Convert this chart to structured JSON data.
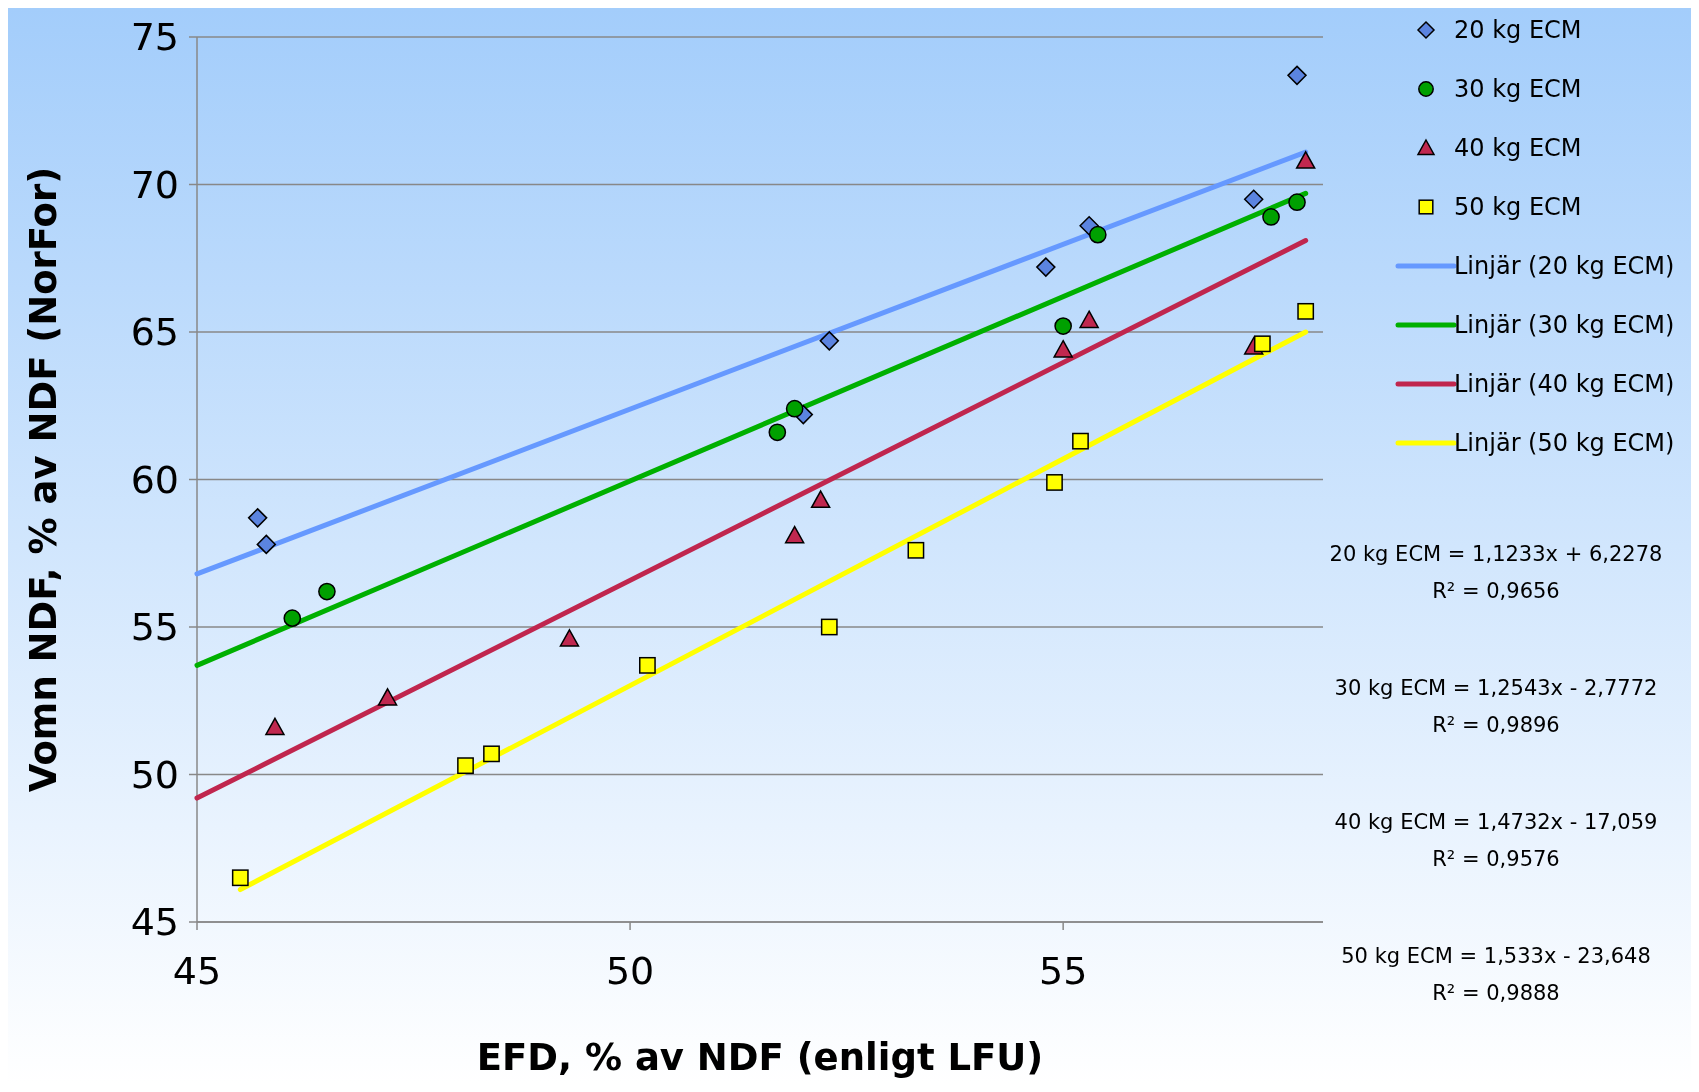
{
  "chart_data": {
    "type": "scatter",
    "xlabel": "EFD, % av NDF (enligt LFU)",
    "ylabel": "Vomn NDF, % av NDF (NorFor)",
    "xlim": [
      45,
      58
    ],
    "xticks": [
      45,
      50,
      55
    ],
    "ylim": [
      45,
      75
    ],
    "yticks": [
      45,
      50,
      55,
      60,
      65,
      70,
      75
    ],
    "grid": "y",
    "legend": "right",
    "series": [
      {
        "name": "20 kg ECM",
        "color": "#5b84e0",
        "marker": "diamond",
        "x": [
          45.7,
          45.8,
          52.0,
          52.3,
          54.8,
          55.3,
          57.2,
          57.7
        ],
        "values": [
          58.7,
          57.8,
          62.2,
          64.7,
          67.2,
          68.6,
          69.5,
          73.7
        ]
      },
      {
        "name": "30 kg ECM",
        "color": "#00a000",
        "marker": "circle",
        "x": [
          46.1,
          46.5,
          51.7,
          51.9,
          55.0,
          55.4,
          57.4,
          57.7
        ],
        "values": [
          55.3,
          56.2,
          61.6,
          62.4,
          65.2,
          68.3,
          68.9,
          69.4
        ]
      },
      {
        "name": "40 kg ECM",
        "color": "#c0284f",
        "marker": "triangle",
        "x": [
          45.9,
          47.2,
          49.3,
          51.9,
          52.2,
          55.0,
          55.3,
          57.2,
          57.8
        ],
        "values": [
          51.6,
          52.6,
          54.6,
          58.1,
          59.3,
          64.4,
          65.4,
          64.5,
          70.8
        ]
      },
      {
        "name": "50 kg ECM",
        "color": "#ffff00",
        "marker": "square",
        "x": [
          45.5,
          48.1,
          48.4,
          50.2,
          52.3,
          53.3,
          54.9,
          55.2,
          57.3,
          57.8
        ],
        "values": [
          46.5,
          50.3,
          50.7,
          53.7,
          55.0,
          57.6,
          59.9,
          61.3,
          64.6,
          65.7
        ]
      },
      {
        "name": "Linjär (20 kg ECM)",
        "type": "line",
        "color": "#6699ff",
        "marker": "none",
        "x": [
          45,
          57.8
        ],
        "values": [
          56.8,
          71.1
        ]
      },
      {
        "name": "Linjär (30 kg ECM)",
        "type": "line",
        "color": "#00b000",
        "marker": "none",
        "x": [
          45,
          57.8
        ],
        "values": [
          53.7,
          69.7
        ]
      },
      {
        "name": "Linjär (40 kg ECM)",
        "type": "line",
        "color": "#c0264e",
        "marker": "none",
        "x": [
          45,
          57.8
        ],
        "values": [
          49.2,
          68.1
        ]
      },
      {
        "name": "Linjär (50 kg ECM)",
        "type": "line",
        "color": "#ffff00",
        "marker": "none",
        "x": [
          45.5,
          57.8
        ],
        "values": [
          46.1,
          65.0
        ]
      }
    ],
    "annotations": [
      "20 kg ECM = 1,1233x + 6,2278\nR² = 0,9656",
      "30 kg ECM = 1,2543x - 2,7772\nR² = 0,9896",
      "40 kg ECM = 1,4732x - 17,059\nR² = 0,9576",
      "50 kg ECM = 1,533x - 23,648\nR² = 0,9888"
    ]
  }
}
